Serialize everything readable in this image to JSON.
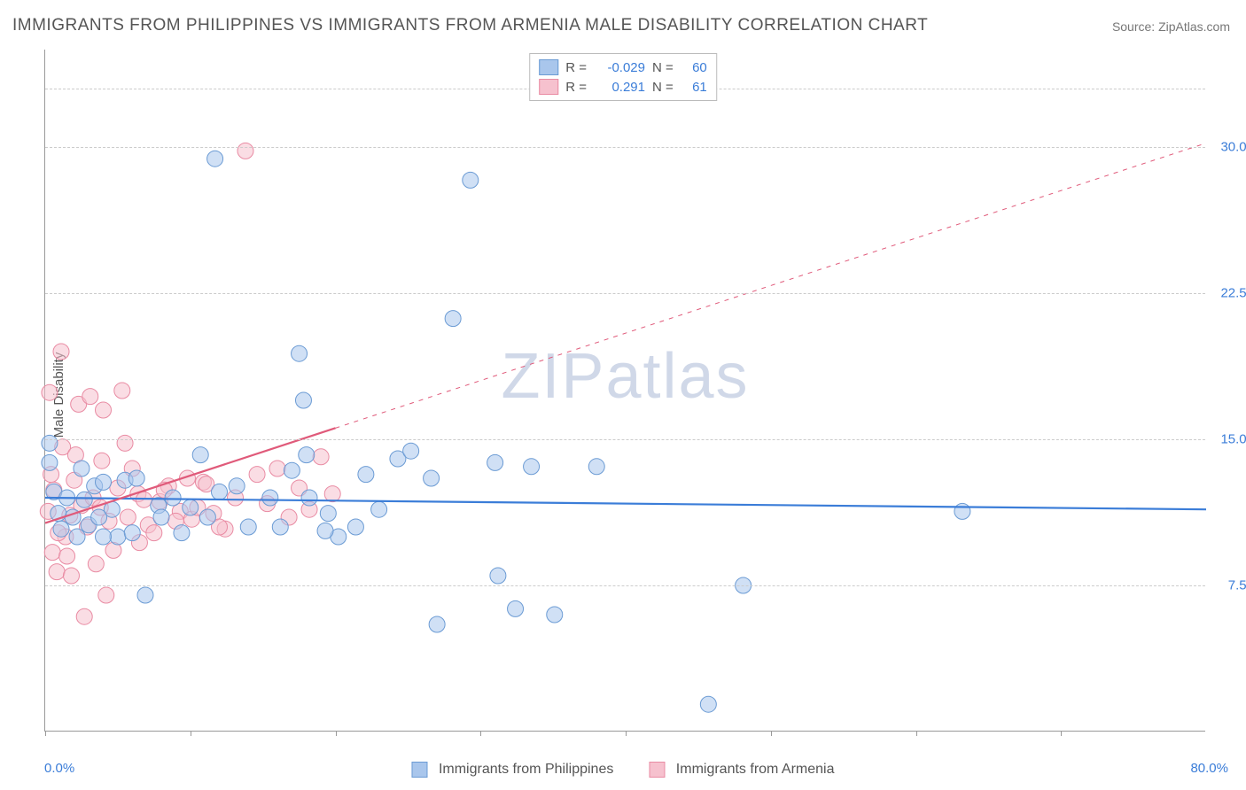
{
  "title": "IMMIGRANTS FROM PHILIPPINES VS IMMIGRANTS FROM ARMENIA MALE DISABILITY CORRELATION CHART",
  "source": "Source: ZipAtlas.com",
  "ylabel": "Male Disability",
  "watermark_a": "ZIP",
  "watermark_b": "atlas",
  "chart": {
    "type": "scatter",
    "xlim": [
      0,
      80
    ],
    "ylim": [
      0,
      35
    ],
    "ytick_values": [
      7.5,
      15.0,
      22.5,
      30.0
    ],
    "ytick_labels": [
      "7.5%",
      "15.0%",
      "22.5%",
      "30.0%"
    ],
    "xtick_values": [
      0,
      10,
      20,
      30,
      40,
      50,
      60,
      70
    ],
    "x_axis_min_label": "0.0%",
    "x_axis_max_label": "80.0%",
    "grid_color": "#cccccc",
    "axis_color": "#999999",
    "background_color": "#ffffff",
    "text_color": "#555555",
    "value_color": "#3b7dd8",
    "marker_radius": 9,
    "marker_opacity": 0.55,
    "line_width": 2.2,
    "series": [
      {
        "name": "Immigrants from Philippines",
        "color_fill": "#a9c6ec",
        "color_stroke": "#6b9bd4",
        "color_line": "#3b7dd8",
        "R": "-0.029",
        "N": "60",
        "trend": {
          "x1": 0,
          "y1": 12.0,
          "x2": 80,
          "y2": 11.4,
          "dash": false,
          "solid_until_x": 80
        },
        "points": [
          [
            0.3,
            13.8
          ],
          [
            1.9,
            11.0
          ],
          [
            3.4,
            12.6
          ],
          [
            1.1,
            10.4
          ],
          [
            2.7,
            11.9
          ],
          [
            4.6,
            11.4
          ],
          [
            0.6,
            12.3
          ],
          [
            2.2,
            10.0
          ],
          [
            5.5,
            12.9
          ],
          [
            3.0,
            10.6
          ],
          [
            6.9,
            7.0
          ],
          [
            1.5,
            12.0
          ],
          [
            4.0,
            12.8
          ],
          [
            2.5,
            13.5
          ],
          [
            7.8,
            11.6
          ],
          [
            0.9,
            11.2
          ],
          [
            5.0,
            10.0
          ],
          [
            3.7,
            11.0
          ],
          [
            8.8,
            12.0
          ],
          [
            6.3,
            13.0
          ],
          [
            10.0,
            11.5
          ],
          [
            9.4,
            10.2
          ],
          [
            12.0,
            12.3
          ],
          [
            11.2,
            11.0
          ],
          [
            14.0,
            10.5
          ],
          [
            13.2,
            12.6
          ],
          [
            15.5,
            12.0
          ],
          [
            17.0,
            13.4
          ],
          [
            16.2,
            10.5
          ],
          [
            18.2,
            12.0
          ],
          [
            19.5,
            11.2
          ],
          [
            20.2,
            10.0
          ],
          [
            21.4,
            10.5
          ],
          [
            22.1,
            13.2
          ],
          [
            23.0,
            11.4
          ],
          [
            24.3,
            14.0
          ],
          [
            25.2,
            14.4
          ],
          [
            26.6,
            13.0
          ],
          [
            27.0,
            5.5
          ],
          [
            28.1,
            21.2
          ],
          [
            17.5,
            19.4
          ],
          [
            17.8,
            17.0
          ],
          [
            18.0,
            14.2
          ],
          [
            29.3,
            28.3
          ],
          [
            11.7,
            29.4
          ],
          [
            8.0,
            11.0
          ],
          [
            10.7,
            14.2
          ],
          [
            4.0,
            10.0
          ],
          [
            19.3,
            10.3
          ],
          [
            0.3,
            14.8
          ],
          [
            31.2,
            8.0
          ],
          [
            32.4,
            6.3
          ],
          [
            33.5,
            13.6
          ],
          [
            35.1,
            6.0
          ],
          [
            38.0,
            13.6
          ],
          [
            45.7,
            1.4
          ],
          [
            48.1,
            7.5
          ],
          [
            63.2,
            11.3
          ],
          [
            31.0,
            13.8
          ],
          [
            6.0,
            10.2
          ]
        ]
      },
      {
        "name": "Immigrants from Armenia",
        "color_fill": "#f6c1ce",
        "color_stroke": "#e98ba3",
        "color_line": "#e05a7a",
        "R": "0.291",
        "N": "61",
        "trend": {
          "x1": 0,
          "y1": 10.7,
          "x2": 80,
          "y2": 30.2,
          "dash": true,
          "solid_until_x": 20
        },
        "points": [
          [
            0.2,
            11.3
          ],
          [
            1.4,
            10.0
          ],
          [
            0.6,
            12.4
          ],
          [
            2.5,
            11.6
          ],
          [
            0.9,
            10.2
          ],
          [
            3.3,
            12.0
          ],
          [
            1.1,
            19.5
          ],
          [
            0.5,
            9.2
          ],
          [
            2.0,
            12.9
          ],
          [
            1.7,
            11.1
          ],
          [
            2.9,
            10.5
          ],
          [
            3.8,
            11.5
          ],
          [
            0.3,
            17.4
          ],
          [
            4.4,
            10.8
          ],
          [
            1.2,
            14.6
          ],
          [
            5.0,
            12.5
          ],
          [
            2.3,
            16.8
          ],
          [
            5.7,
            11.0
          ],
          [
            3.1,
            17.2
          ],
          [
            6.4,
            12.2
          ],
          [
            0.8,
            8.2
          ],
          [
            7.1,
            10.6
          ],
          [
            4.0,
            16.5
          ],
          [
            7.9,
            11.8
          ],
          [
            1.5,
            9.0
          ],
          [
            8.5,
            12.6
          ],
          [
            2.7,
            5.9
          ],
          [
            9.3,
            11.3
          ],
          [
            4.7,
            9.3
          ],
          [
            10.1,
            10.9
          ],
          [
            5.3,
            17.5
          ],
          [
            10.9,
            12.8
          ],
          [
            3.5,
            8.6
          ],
          [
            11.6,
            11.2
          ],
          [
            6.0,
            13.5
          ],
          [
            12.4,
            10.4
          ],
          [
            4.2,
            7.0
          ],
          [
            13.1,
            12.0
          ],
          [
            6.8,
            11.9
          ],
          [
            13.8,
            29.8
          ],
          [
            7.5,
            10.2
          ],
          [
            14.6,
            13.2
          ],
          [
            2.1,
            14.2
          ],
          [
            15.3,
            11.7
          ],
          [
            8.2,
            12.4
          ],
          [
            16.0,
            13.5
          ],
          [
            5.5,
            14.8
          ],
          [
            16.8,
            11.0
          ],
          [
            9.0,
            10.8
          ],
          [
            17.5,
            12.5
          ],
          [
            3.9,
            13.9
          ],
          [
            18.2,
            11.4
          ],
          [
            9.8,
            13.0
          ],
          [
            19.0,
            14.1
          ],
          [
            6.5,
            9.7
          ],
          [
            19.8,
            12.2
          ],
          [
            10.5,
            11.5
          ],
          [
            0.4,
            13.2
          ],
          [
            11.1,
            12.7
          ],
          [
            1.8,
            8.0
          ],
          [
            12.0,
            10.5
          ]
        ]
      }
    ]
  },
  "bottom_legend": {
    "a_label": "Immigrants from Philippines",
    "b_label": "Immigrants from Armenia"
  },
  "top_legend": {
    "r_label": "R =",
    "n_label": "N ="
  }
}
